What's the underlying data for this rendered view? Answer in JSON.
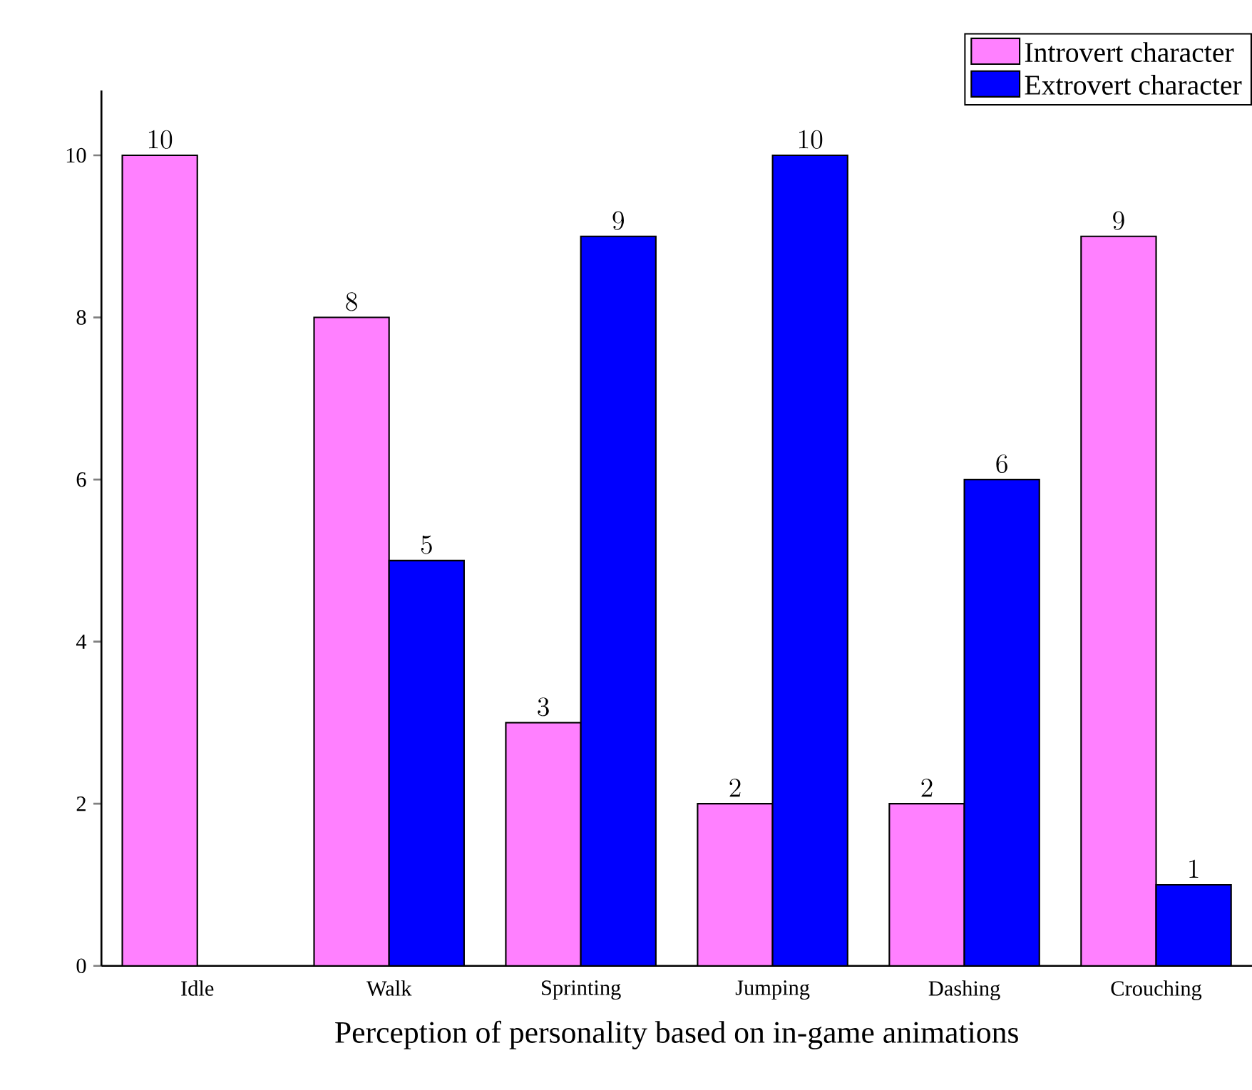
{
  "chart_data": {
    "type": "bar",
    "xlabel": "Perception of personality based on in-game animations",
    "categories": [
      "Idle",
      "Walk",
      "Sprinting",
      "Jumping",
      "Dashing",
      "Crouching"
    ],
    "series": [
      {
        "name": "Introvert character",
        "color": "#ff80ff",
        "values": [
          10,
          8,
          3,
          2,
          2,
          9
        ]
      },
      {
        "name": "Extrovert character",
        "color": "#0000ff",
        "values": [
          null,
          5,
          9,
          10,
          6,
          1
        ]
      }
    ],
    "ylim": [
      0,
      10.8
    ],
    "yticks": [
      0,
      2,
      4,
      6,
      8,
      10
    ],
    "data_labels": true,
    "legend": "top right"
  }
}
